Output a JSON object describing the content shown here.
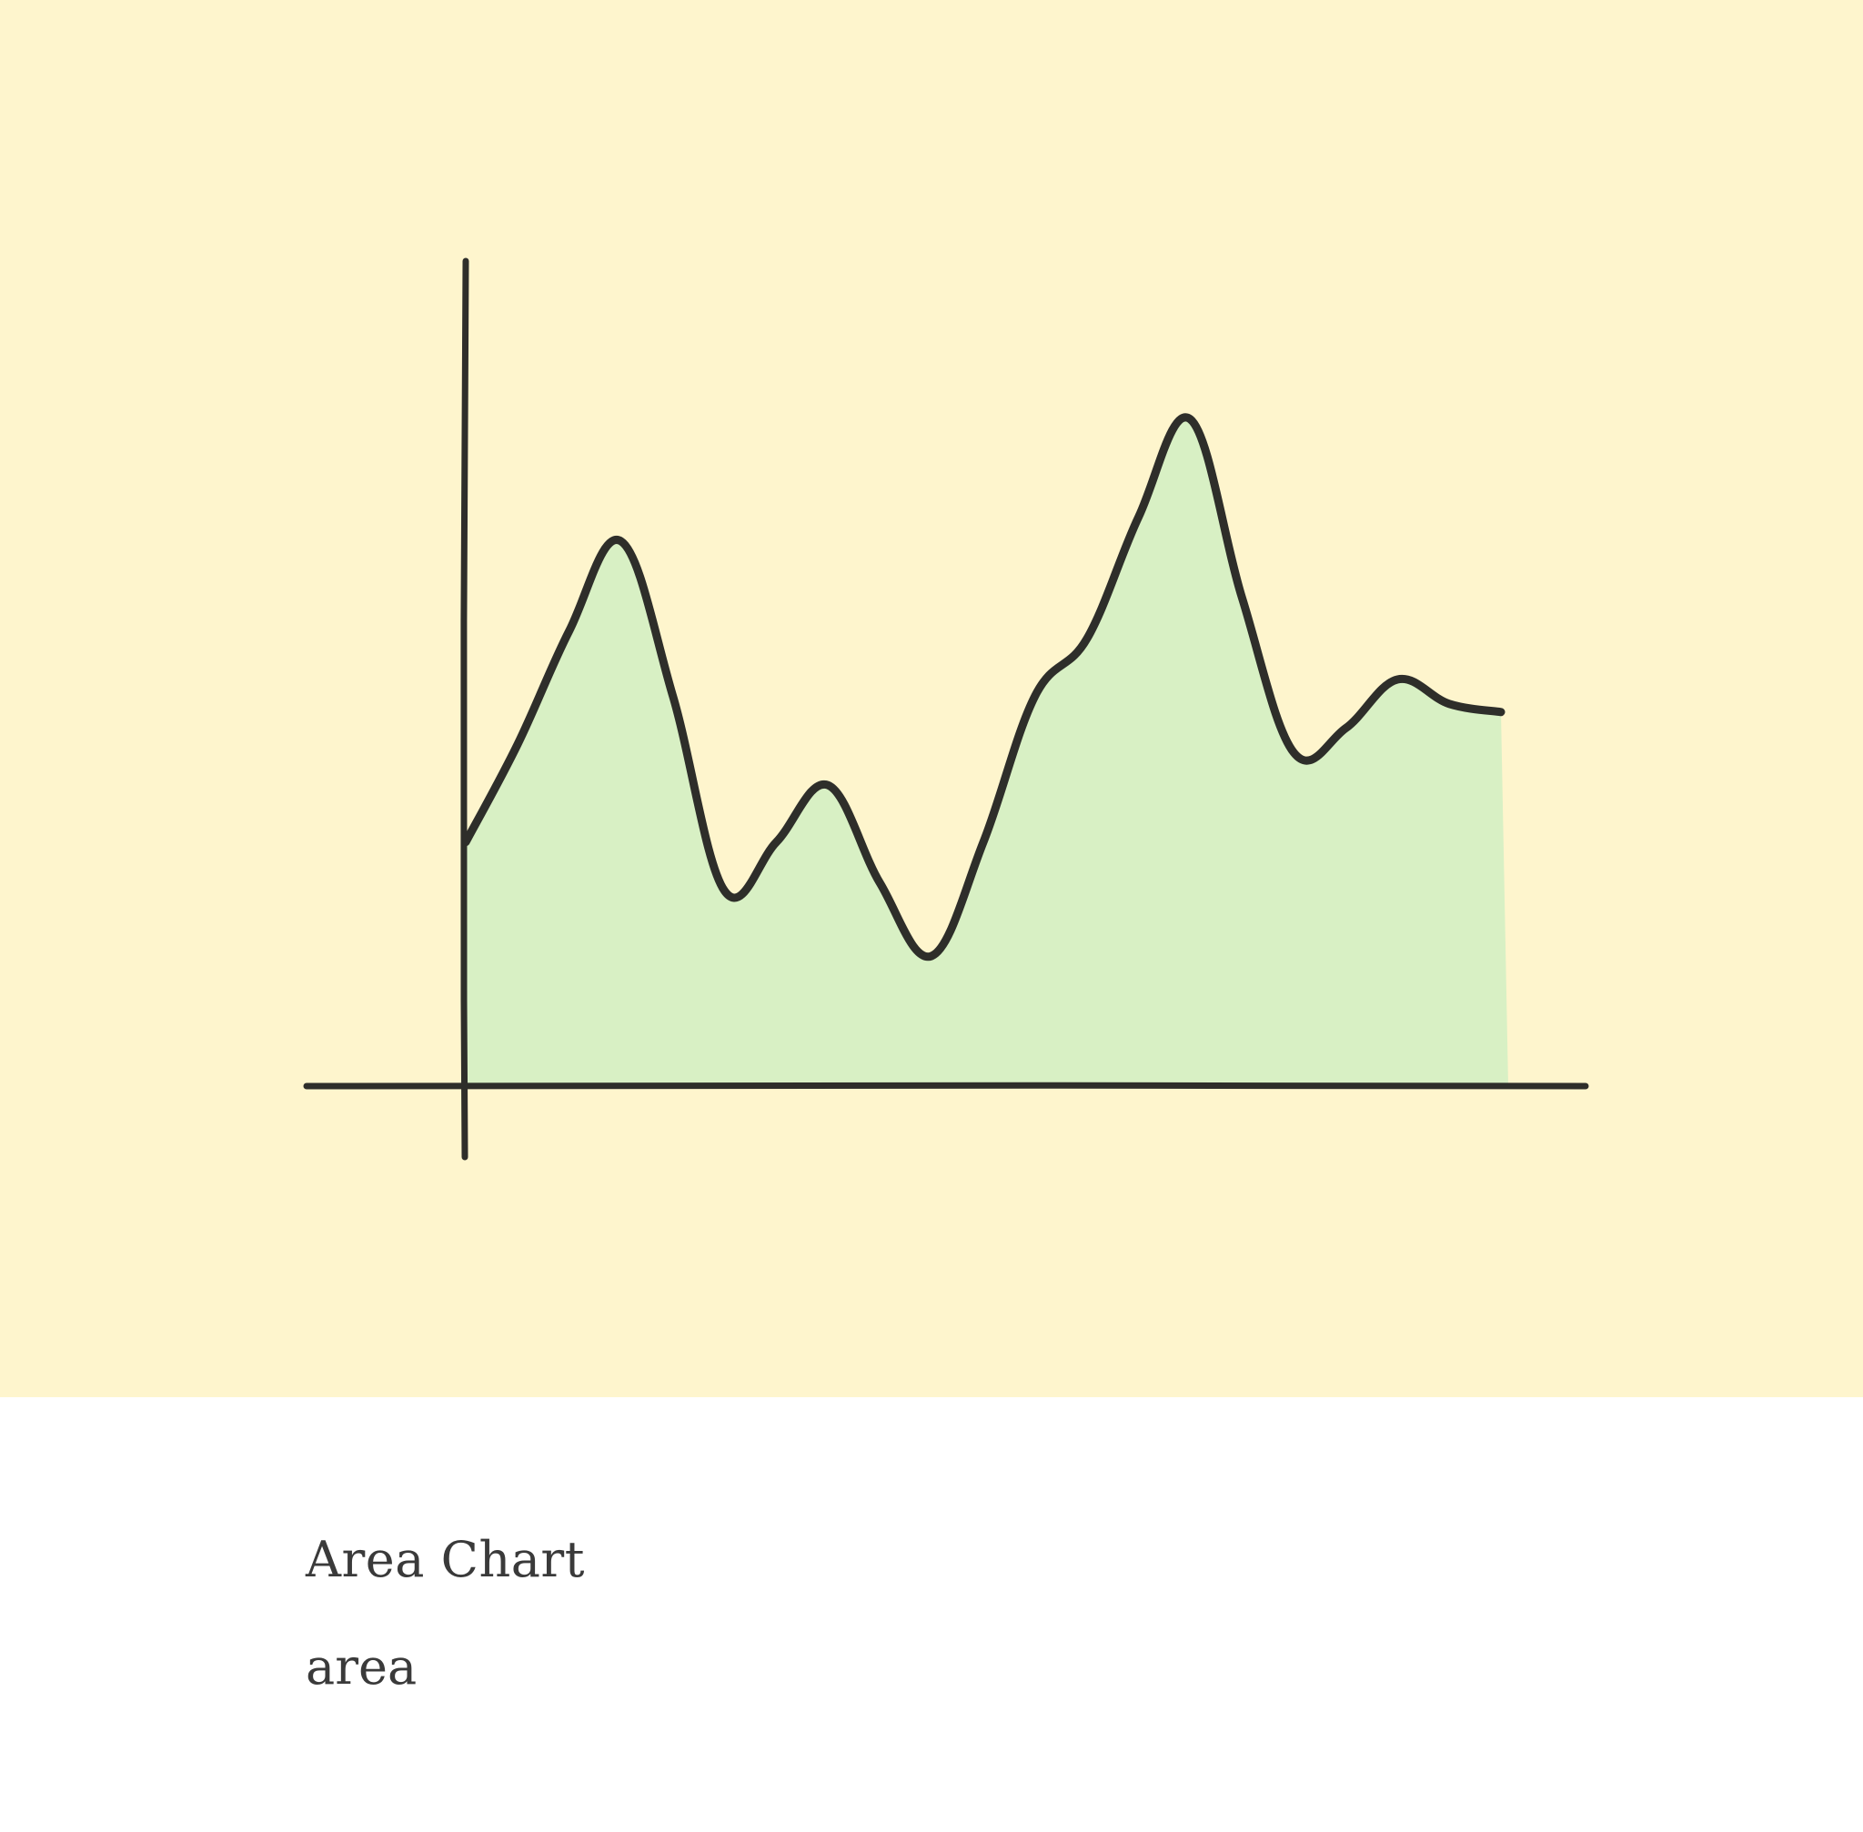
{
  "card": {
    "title": "Area Chart",
    "subtitle": "area"
  },
  "colors": {
    "background": "#fef5cd",
    "fill": "#d8f0c4",
    "line": "#2e2e2a"
  },
  "chart_data": {
    "type": "area",
    "title": "",
    "xlabel": "",
    "ylabel": "",
    "grid": false,
    "x": [
      0,
      1,
      2,
      3,
      4,
      5,
      6,
      7,
      8,
      9,
      10,
      11,
      12,
      13,
      14,
      15,
      16,
      17,
      18,
      19,
      20
    ],
    "ylim": [
      0,
      100
    ],
    "series": [
      {
        "values": [
          30,
          42,
          56,
          67,
          48,
          24,
          30,
          37,
          25,
          16,
          30,
          48,
          55,
          70,
          82,
          60,
          41,
          44,
          50,
          47,
          46
        ]
      }
    ]
  }
}
